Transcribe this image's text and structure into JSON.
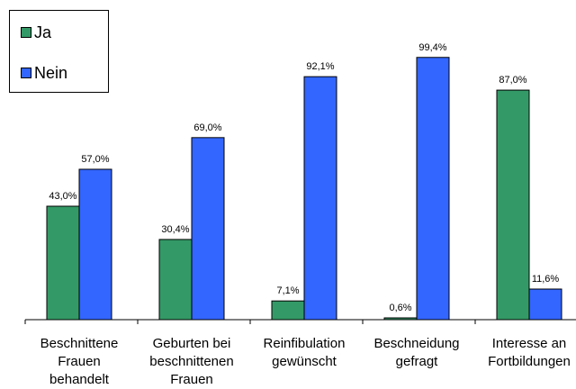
{
  "chart_data": {
    "type": "bar",
    "title": "",
    "xlabel": "",
    "ylabel": "",
    "ylim": [
      0,
      100
    ],
    "grid": false,
    "legend_position": "top-left",
    "categories": [
      [
        "Beschnittene",
        "Frauen",
        "behandelt"
      ],
      [
        "Geburten bei",
        "beschnittenen",
        "Frauen"
      ],
      [
        "Reinfibulation",
        "gewünscht"
      ],
      [
        "Beschneidung",
        "gefragt"
      ],
      [
        "Interesse an",
        "Fortbildungen"
      ]
    ],
    "series": [
      {
        "name": "Ja",
        "color": "#339966",
        "values": [
          43.0,
          30.4,
          7.1,
          0.6,
          87.0
        ],
        "labels": [
          "43,0%",
          "30,4%",
          "7,1%",
          "0,6%",
          "87,0%"
        ]
      },
      {
        "name": "Nein",
        "color": "#3366ff",
        "values": [
          57.0,
          69.0,
          92.1,
          99.4,
          11.6
        ],
        "labels": [
          "57,0%",
          "69,0%",
          "92,1%",
          "99,4%",
          "11,6%"
        ]
      }
    ]
  }
}
